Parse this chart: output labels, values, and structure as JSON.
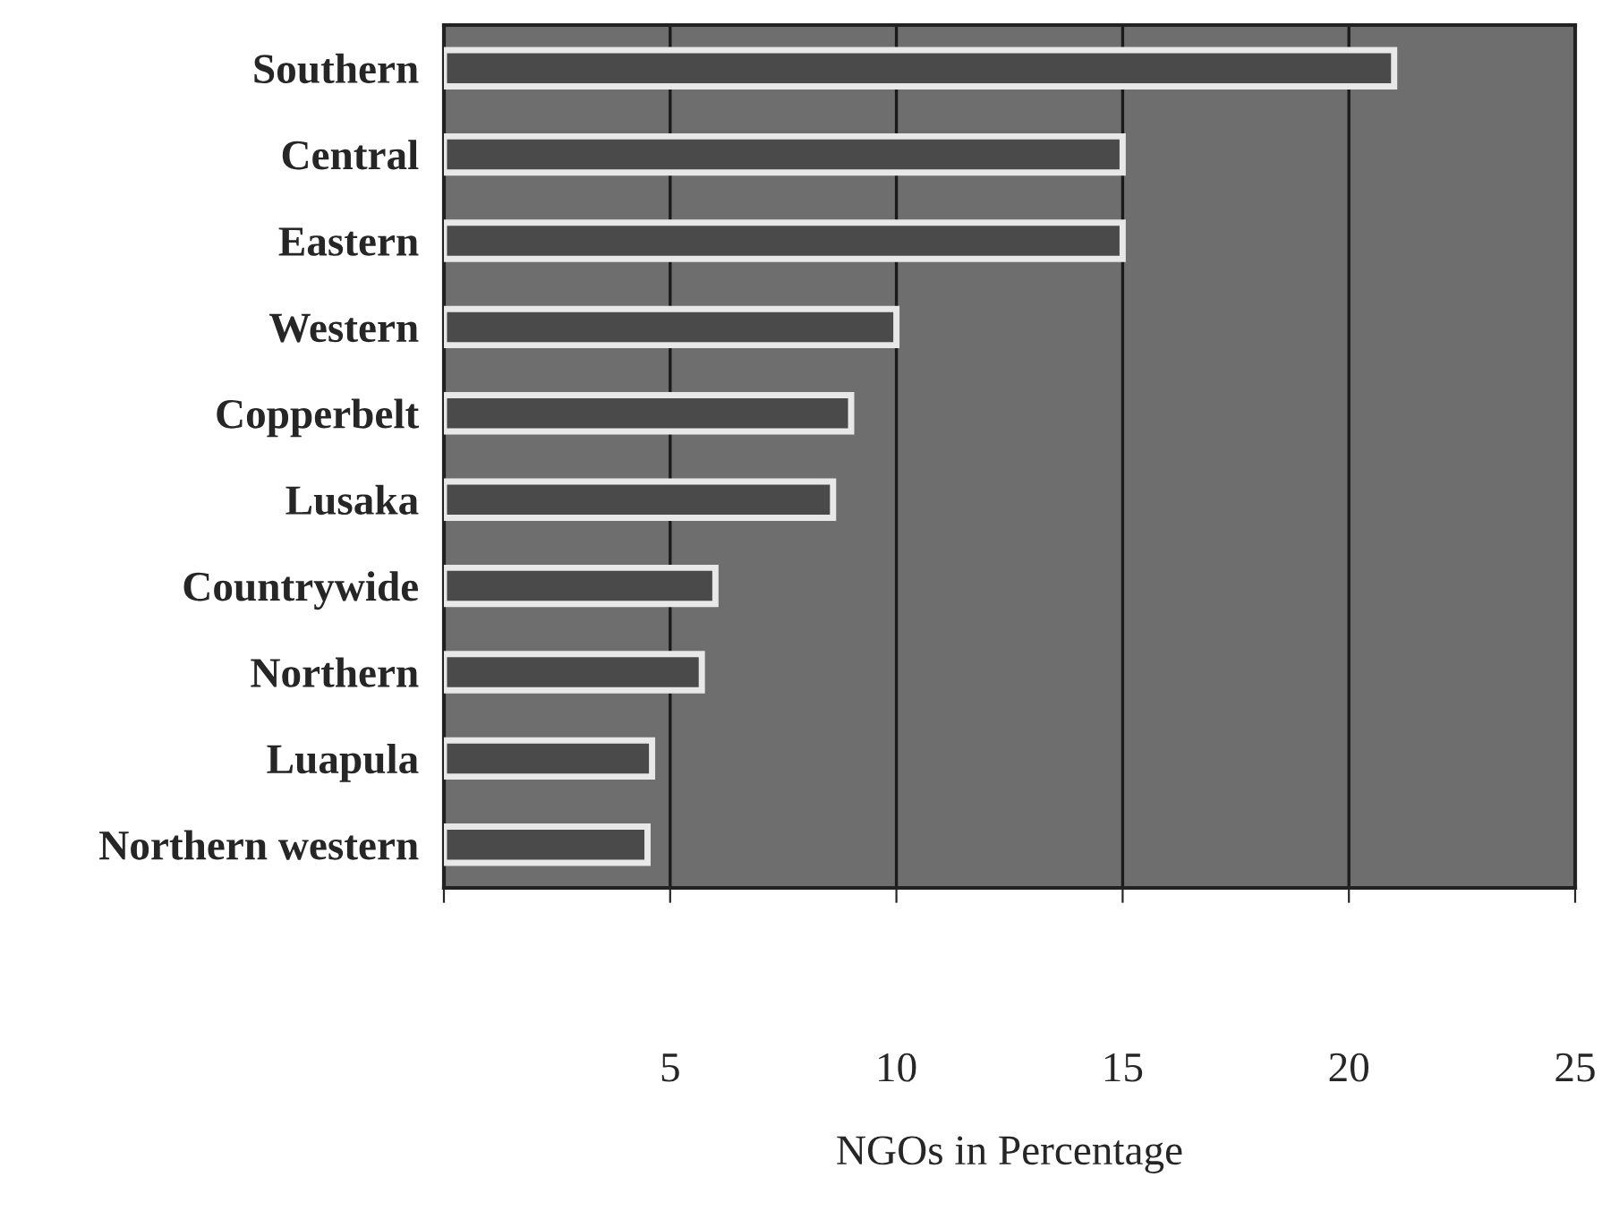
{
  "chart_data": {
    "type": "bar",
    "orientation": "horizontal",
    "xlabel": "NGOs in Percentage",
    "categories": [
      "Southern",
      "Central",
      "Eastern",
      "Western",
      "Copperbelt",
      "Lusaka",
      "Countrywide",
      "Northern",
      "Luapula",
      "Northern western"
    ],
    "values": [
      21,
      15,
      15,
      10,
      9,
      8.6,
      6,
      5.7,
      4.6,
      4.5
    ],
    "color": "#4a4a4a",
    "xlim": [
      0,
      25
    ],
    "xticks": [
      {
        "value": 0,
        "label": null
      },
      5,
      10,
      15,
      20,
      25
    ],
    "grid": "x"
  }
}
